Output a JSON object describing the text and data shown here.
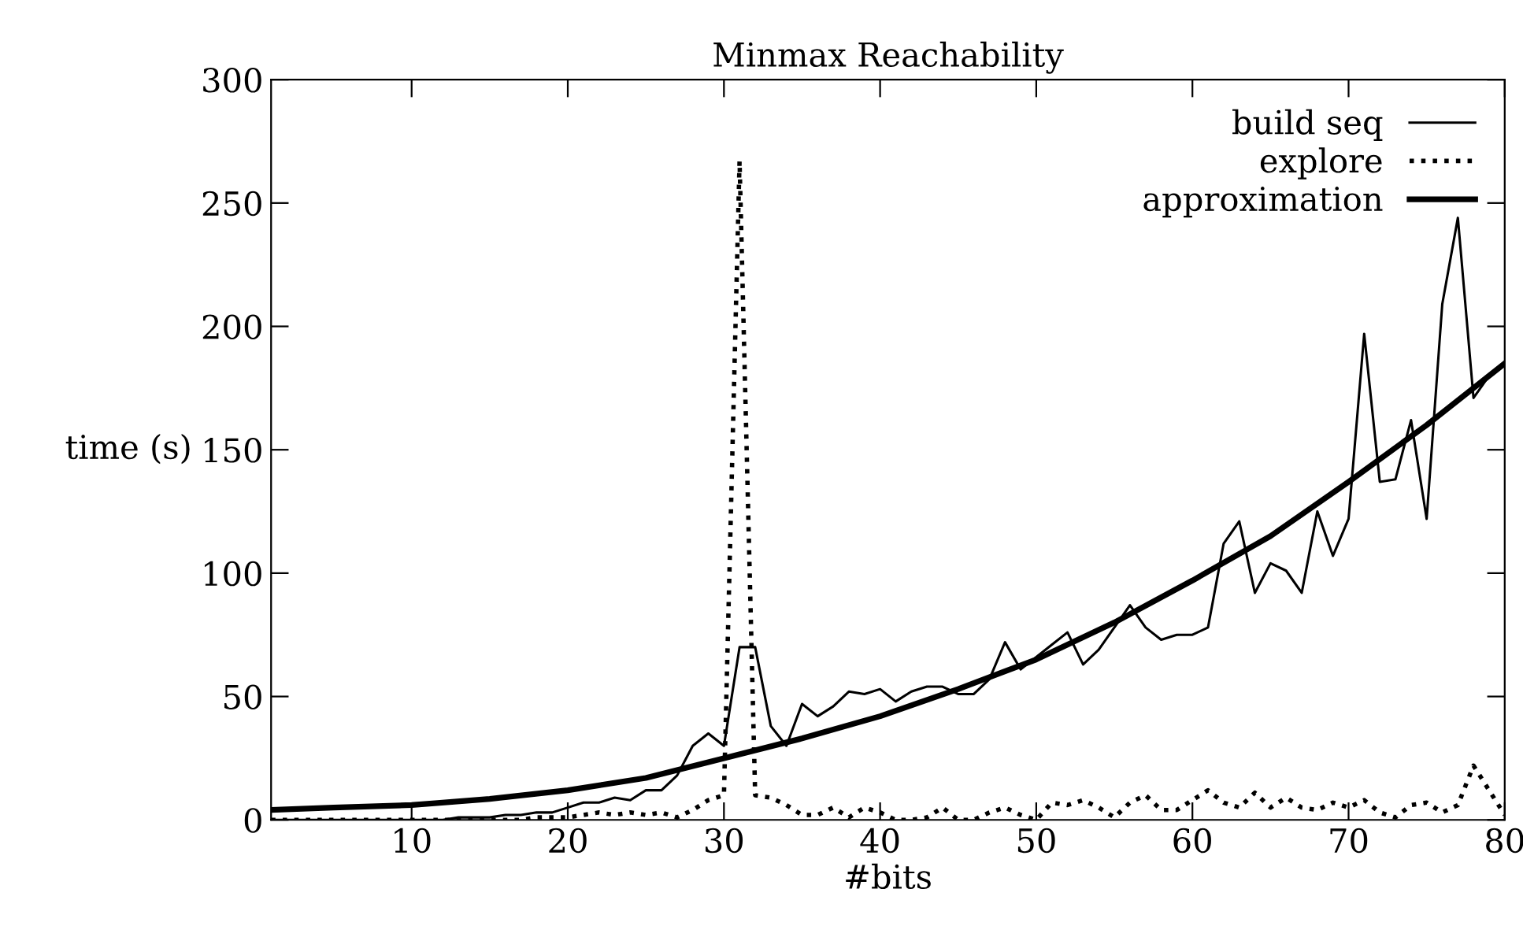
{
  "chart_data": {
    "type": "line",
    "title": "Minmax Reachability",
    "xlabel": "#bits",
    "ylabel": "time (s)",
    "xlim": [
      1,
      80
    ],
    "xticks": [
      10,
      20,
      30,
      40,
      50,
      60,
      70,
      80
    ],
    "ylim": [
      0,
      300
    ],
    "yticks": [
      0,
      50,
      100,
      150,
      200,
      250,
      300
    ],
    "grid": false,
    "legend": "top right",
    "marker": "none",
    "series": [
      {
        "name": "build seq",
        "color": "#000000",
        "line_style": "solid",
        "x": [
          1,
          2,
          3,
          4,
          5,
          6,
          7,
          8,
          9,
          10,
          11,
          12,
          13,
          14,
          15,
          16,
          17,
          18,
          19,
          20,
          21,
          22,
          23,
          24,
          25,
          26,
          27,
          28,
          29,
          30,
          31,
          32,
          33,
          34,
          35,
          36,
          37,
          38,
          39,
          40,
          41,
          42,
          43,
          44,
          45,
          46,
          47,
          48,
          49,
          50,
          51,
          52,
          53,
          54,
          55,
          56,
          57,
          58,
          59,
          60,
          61,
          62,
          63,
          64,
          65,
          66,
          67,
          68,
          69,
          70,
          71,
          72,
          73,
          74,
          75,
          76,
          77,
          78,
          79,
          80
        ],
        "values": [
          0,
          0,
          0,
          0,
          0,
          0,
          0,
          0,
          0,
          0,
          0,
          0,
          1,
          1,
          1,
          2,
          2,
          3,
          3,
          5,
          7,
          7,
          9,
          8,
          12,
          12,
          18,
          30,
          35,
          30,
          70,
          70,
          38,
          30,
          47,
          42,
          46,
          52,
          51,
          53,
          48,
          52,
          54,
          54,
          51,
          51,
          57,
          72,
          61,
          66,
          71,
          76,
          63,
          69,
          78,
          87,
          78,
          73,
          75,
          75,
          78,
          112,
          121,
          92,
          104,
          101,
          92,
          125,
          107,
          122,
          197,
          137,
          138,
          162,
          122,
          209,
          244,
          171,
          180,
          185
        ]
      },
      {
        "name": "explore",
        "color": "#000000",
        "line_style": "dotted",
        "x": [
          1,
          2,
          3,
          4,
          5,
          6,
          7,
          8,
          9,
          10,
          11,
          12,
          13,
          14,
          15,
          16,
          17,
          18,
          19,
          20,
          21,
          22,
          23,
          24,
          25,
          26,
          27,
          28,
          29,
          30,
          31,
          32,
          33,
          34,
          35,
          36,
          37,
          38,
          39,
          40,
          41,
          42,
          43,
          44,
          45,
          46,
          47,
          48,
          49,
          50,
          51,
          52,
          53,
          54,
          55,
          56,
          57,
          58,
          59,
          60,
          61,
          62,
          63,
          64,
          65,
          66,
          67,
          68,
          69,
          70,
          71,
          72,
          73,
          74,
          75,
          76,
          77,
          78,
          79,
          80
        ],
        "values": [
          0,
          0,
          0,
          0,
          0,
          0,
          0,
          0,
          0,
          0,
          0,
          0,
          0,
          0,
          0,
          0,
          0,
          1,
          1,
          1,
          2,
          3,
          2,
          3,
          2,
          3,
          1,
          4,
          8,
          10,
          267,
          10,
          9,
          6,
          2,
          2,
          5,
          1,
          5,
          3,
          0,
          0,
          1,
          5,
          0,
          0,
          3,
          5,
          2,
          0,
          7,
          6,
          8,
          5,
          1,
          7,
          10,
          4,
          4,
          8,
          12,
          7,
          5,
          11,
          5,
          9,
          5,
          4,
          7,
          5,
          8,
          3,
          1,
          6,
          7,
          3,
          6,
          22,
          12,
          2
        ]
      },
      {
        "name": "approximation",
        "color": "#000000",
        "line_style": "solid",
        "x": [
          1,
          5,
          10,
          15,
          20,
          25,
          30,
          35,
          40,
          45,
          50,
          55,
          60,
          65,
          70,
          75,
          80
        ],
        "values": [
          4,
          5,
          6,
          8.5,
          12,
          17,
          25,
          33,
          42,
          53,
          65,
          80,
          97,
          115,
          137,
          160,
          185
        ]
      }
    ]
  }
}
